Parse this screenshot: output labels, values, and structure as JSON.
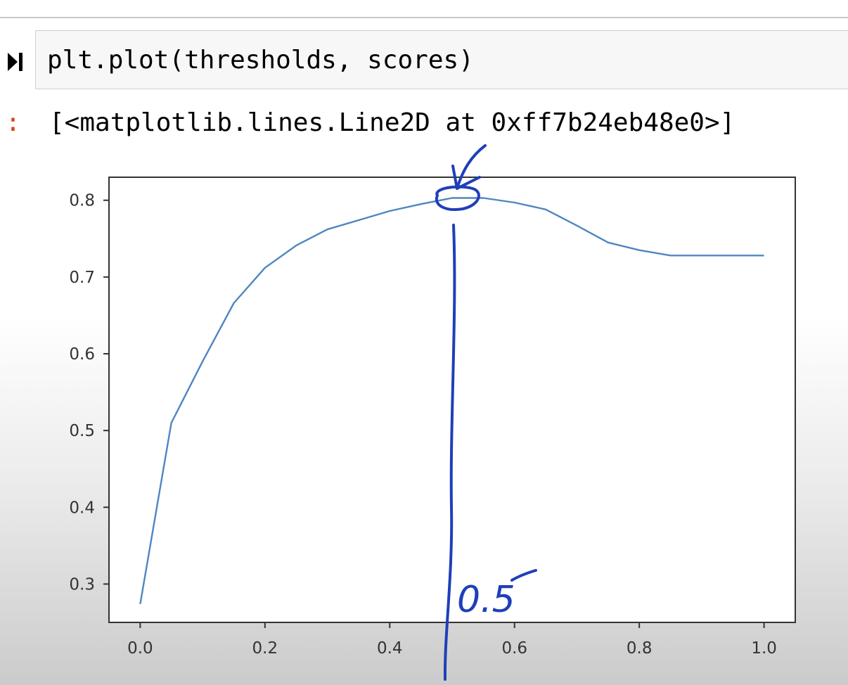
{
  "cell": {
    "code": "plt.plot(thresholds, scores)",
    "output_prompt": "]:",
    "output_text": "[<matplotlib.lines.Line2D at 0xff7b24eb48e0>]"
  },
  "colors": {
    "line": "#4f86c0",
    "annotation": "#1f3fb8",
    "prompt": "#d84315"
  },
  "annotation": {
    "label": "0.5"
  },
  "chart_data": {
    "type": "line",
    "xlim": [
      -0.05,
      1.05
    ],
    "ylim": [
      0.25,
      0.83
    ],
    "xticks": [
      0.0,
      0.2,
      0.4,
      0.6,
      0.8,
      1.0
    ],
    "yticks": [
      0.3,
      0.4,
      0.5,
      0.6,
      0.7,
      0.8
    ],
    "xtick_labels": [
      "0.0",
      "0.2",
      "0.4",
      "0.6",
      "0.8",
      "1.0"
    ],
    "ytick_labels": [
      "0.3",
      "0.4",
      "0.5",
      "0.6",
      "0.7",
      "0.8"
    ],
    "grid": false,
    "x": [
      0.0,
      0.05,
      0.1,
      0.15,
      0.2,
      0.25,
      0.3,
      0.35,
      0.4,
      0.45,
      0.5,
      0.55,
      0.6,
      0.65,
      0.7,
      0.75,
      0.8,
      0.85,
      0.9,
      0.95,
      1.0
    ],
    "y": [
      0.274,
      0.51,
      0.59,
      0.666,
      0.712,
      0.741,
      0.762,
      0.774,
      0.786,
      0.795,
      0.803,
      0.803,
      0.797,
      0.788,
      0.767,
      0.745,
      0.735,
      0.728,
      0.728,
      0.728,
      0.728
    ]
  }
}
